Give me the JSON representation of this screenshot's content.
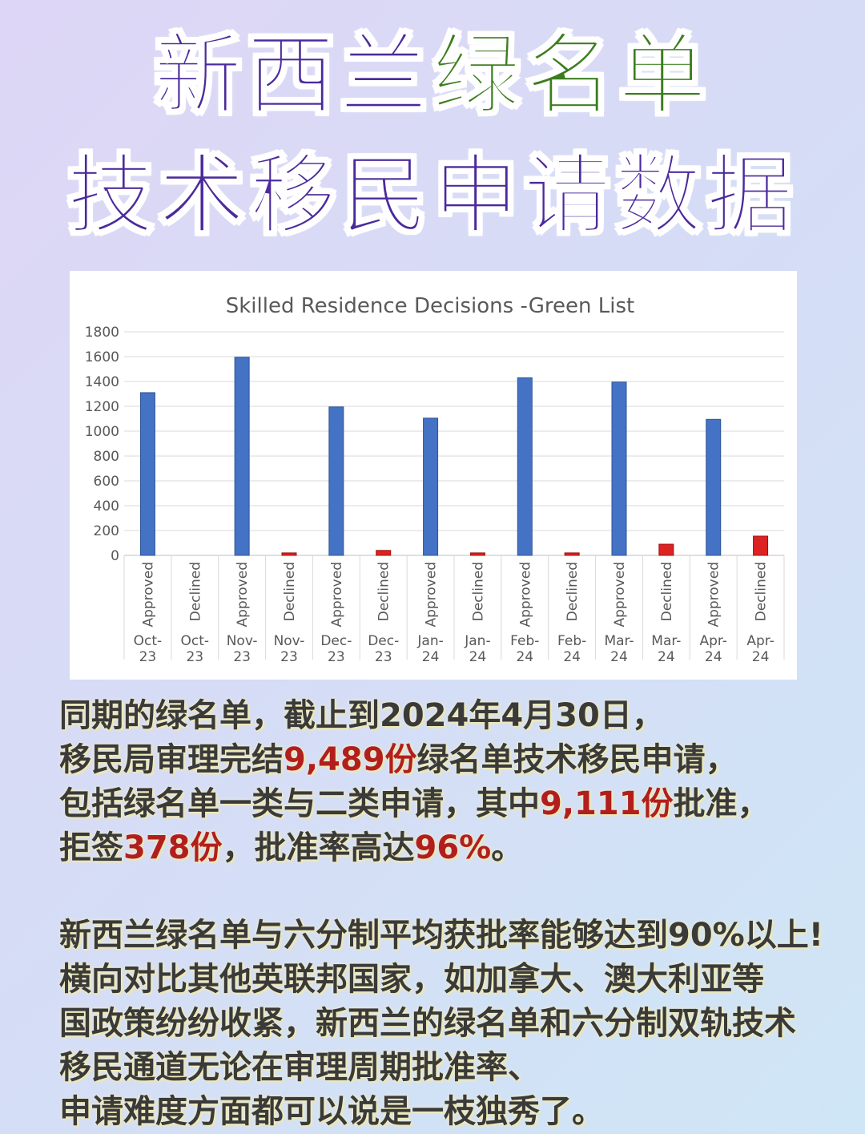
{
  "header": {
    "title_line1_part1": "新西兰",
    "title_line1_part2": "绿名单",
    "title_line2": "技术移民申请数据"
  },
  "chart_data": {
    "type": "bar",
    "title": "Skilled Residence Decisions -Green List",
    "xlabel": "",
    "ylabel": "",
    "ylim": [
      0,
      1800
    ],
    "yticks": [
      "1800",
      "1600",
      "1400",
      "1200",
      "1000",
      "800",
      "600",
      "400",
      "200",
      "0"
    ],
    "grid": true,
    "categories": [
      {
        "status": "Approved",
        "period": "Oct-23",
        "line1": "Oct-",
        "line2": "23"
      },
      {
        "status": "Declined",
        "period": "Oct-23",
        "line1": "Oct-",
        "line2": "23"
      },
      {
        "status": "Approved",
        "period": "Nov-23",
        "line1": "Nov-",
        "line2": "23"
      },
      {
        "status": "Declined",
        "period": "Nov-23",
        "line1": "Nov-",
        "line2": "23"
      },
      {
        "status": "Approved",
        "period": "Dec-23",
        "line1": "Dec-",
        "line2": "23"
      },
      {
        "status": "Declined",
        "period": "Dec-23",
        "line1": "Dec-",
        "line2": "23"
      },
      {
        "status": "Approved",
        "period": "Jan-24",
        "line1": "Jan-",
        "line2": "24"
      },
      {
        "status": "Declined",
        "period": "Jan-24",
        "line1": "Jan-",
        "line2": "24"
      },
      {
        "status": "Approved",
        "period": "Feb-24",
        "line1": "Feb-",
        "line2": "24"
      },
      {
        "status": "Declined",
        "period": "Feb-24",
        "line1": "Feb-",
        "line2": "24"
      },
      {
        "status": "Approved",
        "period": "Mar-24",
        "line1": "Mar-",
        "line2": "24"
      },
      {
        "status": "Declined",
        "period": "Mar-24",
        "line1": "Mar-",
        "line2": "24"
      },
      {
        "status": "Approved",
        "period": "Apr-24",
        "line1": "Apr-",
        "line2": "24"
      },
      {
        "status": "Declined",
        "period": "Apr-24",
        "line1": "Apr-",
        "line2": "24"
      }
    ],
    "values": [
      1310,
      0,
      1595,
      20,
      1195,
      40,
      1105,
      20,
      1430,
      20,
      1395,
      90,
      1095,
      155
    ],
    "colors": {
      "Approved": "#4472c4",
      "Declined": "#dd2222",
      "grid": "#d9d9d9",
      "text": "#595959"
    }
  },
  "body": {
    "para1": {
      "l1": "同期的绿名单，截止到2024年4月30日，",
      "l2_a": "移民局审理完结",
      "l2_b": "9,489份",
      "l2_c": "绿名单技术移民申请，",
      "l3_a": "包括绿名单一类与二类申请，其中",
      "l3_b": "9,111份",
      "l3_c": "批准，",
      "l4_a": "拒签",
      "l4_b": "378份",
      "l4_c": "，批准率高达",
      "l4_d": "96%",
      "l4_e": "。"
    },
    "para2": {
      "l1": "新西兰绿名单与六分制平均获批率能够达到90%以上!",
      "l2": "横向对比其他英联邦国家，如加拿大、澳大利亚等",
      "l3": "国政策纷纷收紧，新西兰的绿名单和六分制双轨技术",
      "l4": "移民通道无论在审理周期批准率、",
      "l5": "申请难度方面都可以说是一枝独秀了。"
    }
  }
}
